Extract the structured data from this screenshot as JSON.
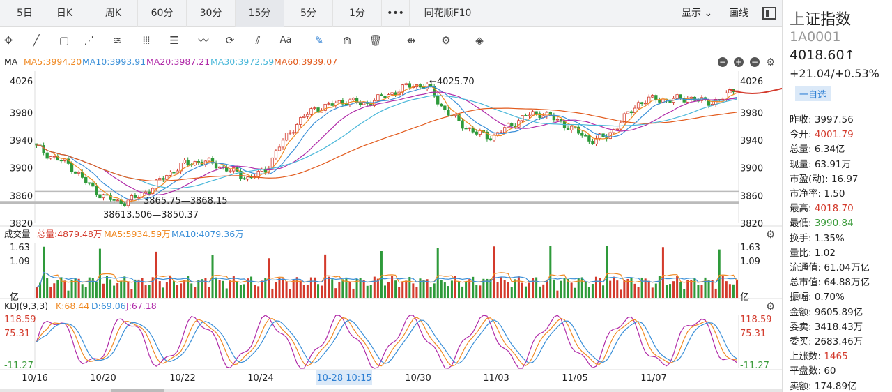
{
  "tabs": [
    "5日",
    "日K",
    "周K",
    "60分",
    "30分",
    "15分",
    "5分",
    "1分",
    "•••",
    "同花顺F10"
  ],
  "active_tab": "15分",
  "top_right": {
    "display": "显示",
    "line": "画线"
  },
  "ma_legend": {
    "label": "MA",
    "ma5": "MA5:3994.20",
    "ma10": "MA10:3993.91",
    "ma20": "MA20:3987.21",
    "ma30": "MA30:3972.59",
    "ma60": "MA60:3939.07"
  },
  "vol_legend": {
    "label": "成交量",
    "total": "总量:4879.48万",
    "ma5": "MA5:5934.59万",
    "ma10": "MA10:4079.36万"
  },
  "kdj_legend": {
    "label": "KDJ(9,3,3)",
    "k": "K:68.44",
    "d": "D:69.06",
    "j": "J:67.18"
  },
  "price_axis": [
    "3820",
    "3860",
    "3900",
    "3940",
    "3980",
    "4026"
  ],
  "price_axis_top": "4040",
  "vol_axis": [
    "1.63",
    "1.09",
    "亿"
  ],
  "kdj_axis": [
    "118.59",
    "75.31",
    "-11.27"
  ],
  "annotations": {
    "high": "←4025.70",
    "low1": "3865.75—3868.15",
    "low2": "38613.506—3850.37"
  },
  "x_labels": [
    "10/16",
    "10/20",
    "10/22",
    "10/24",
    "10-28 10:15",
    "10/30",
    "11/03",
    "11/05",
    "11/07"
  ],
  "side": {
    "name": "上证指数",
    "code": "1A0001",
    "price": "4018.60↑",
    "change": "+21.04/+0.53%",
    "watch": "一自选",
    "items": [
      {
        "k": "昨收:",
        "v": "3997.56",
        "c": "#222"
      },
      {
        "k": "今开:",
        "v": "4001.79",
        "c": "#d33a2c"
      },
      {
        "k": "总量:",
        "v": "6.34亿",
        "c": "#222"
      },
      {
        "k": "现量:",
        "v": "63.91万",
        "c": "#222"
      },
      {
        "k": "市盈(动):",
        "v": "16.97",
        "c": "#222"
      },
      {
        "k": "市净率:",
        "v": "1.50",
        "c": "#222"
      },
      {
        "k": "最高:",
        "v": "4018.70",
        "c": "#d33a2c"
      },
      {
        "k": "最低:",
        "v": "3990.84",
        "c": "#3a9b3a"
      },
      {
        "k": "换手:",
        "v": "1.35%",
        "c": "#222"
      },
      {
        "k": "量比:",
        "v": "1.02",
        "c": "#222"
      },
      {
        "k": "流通值:",
        "v": "61.04万亿",
        "c": "#222"
      },
      {
        "k": "总市值:",
        "v": "64.88万亿",
        "c": "#222"
      },
      {
        "k": "振幅:",
        "v": "0.70%",
        "c": "#222"
      },
      {
        "k": "金额:",
        "v": "9605.89亿",
        "c": "#222"
      },
      {
        "k": "委卖:",
        "v": "3418.43万",
        "c": "#222"
      },
      {
        "k": "委买:",
        "v": "2683.46万",
        "c": "#222"
      },
      {
        "k": "上涨数:",
        "v": "1465",
        "c": "#d33a2c"
      },
      {
        "k": "平盘数:",
        "v": "60",
        "c": "#222"
      },
      {
        "k": "卖额:",
        "v": "174.89亿",
        "c": "#222"
      }
    ]
  },
  "chart_data": {
    "type": "candlestick",
    "price_range": [
      3820,
      4040
    ],
    "approx_close": [
      3930,
      3915,
      3905,
      3880,
      3860,
      3850,
      3855,
      3870,
      3890,
      3905,
      3910,
      3905,
      3895,
      3885,
      3895,
      3935,
      3965,
      3985,
      3990,
      3998,
      3992,
      4000,
      4010,
      4020,
      4018,
      3985,
      3965,
      3950,
      3945,
      3960,
      3975,
      3980,
      3968,
      3955,
      3940,
      3945,
      3970,
      3995,
      4000,
      3998,
      4002,
      3995,
      3998,
      4018
    ],
    "colors": {
      "up": "#d33a2c",
      "down": "#2e9a3a",
      "ma5": "#f08a24",
      "ma10": "#3a8fd8",
      "ma20": "#b02aa8",
      "ma30": "#49b7d9",
      "ma60": "#e25a1c"
    }
  }
}
